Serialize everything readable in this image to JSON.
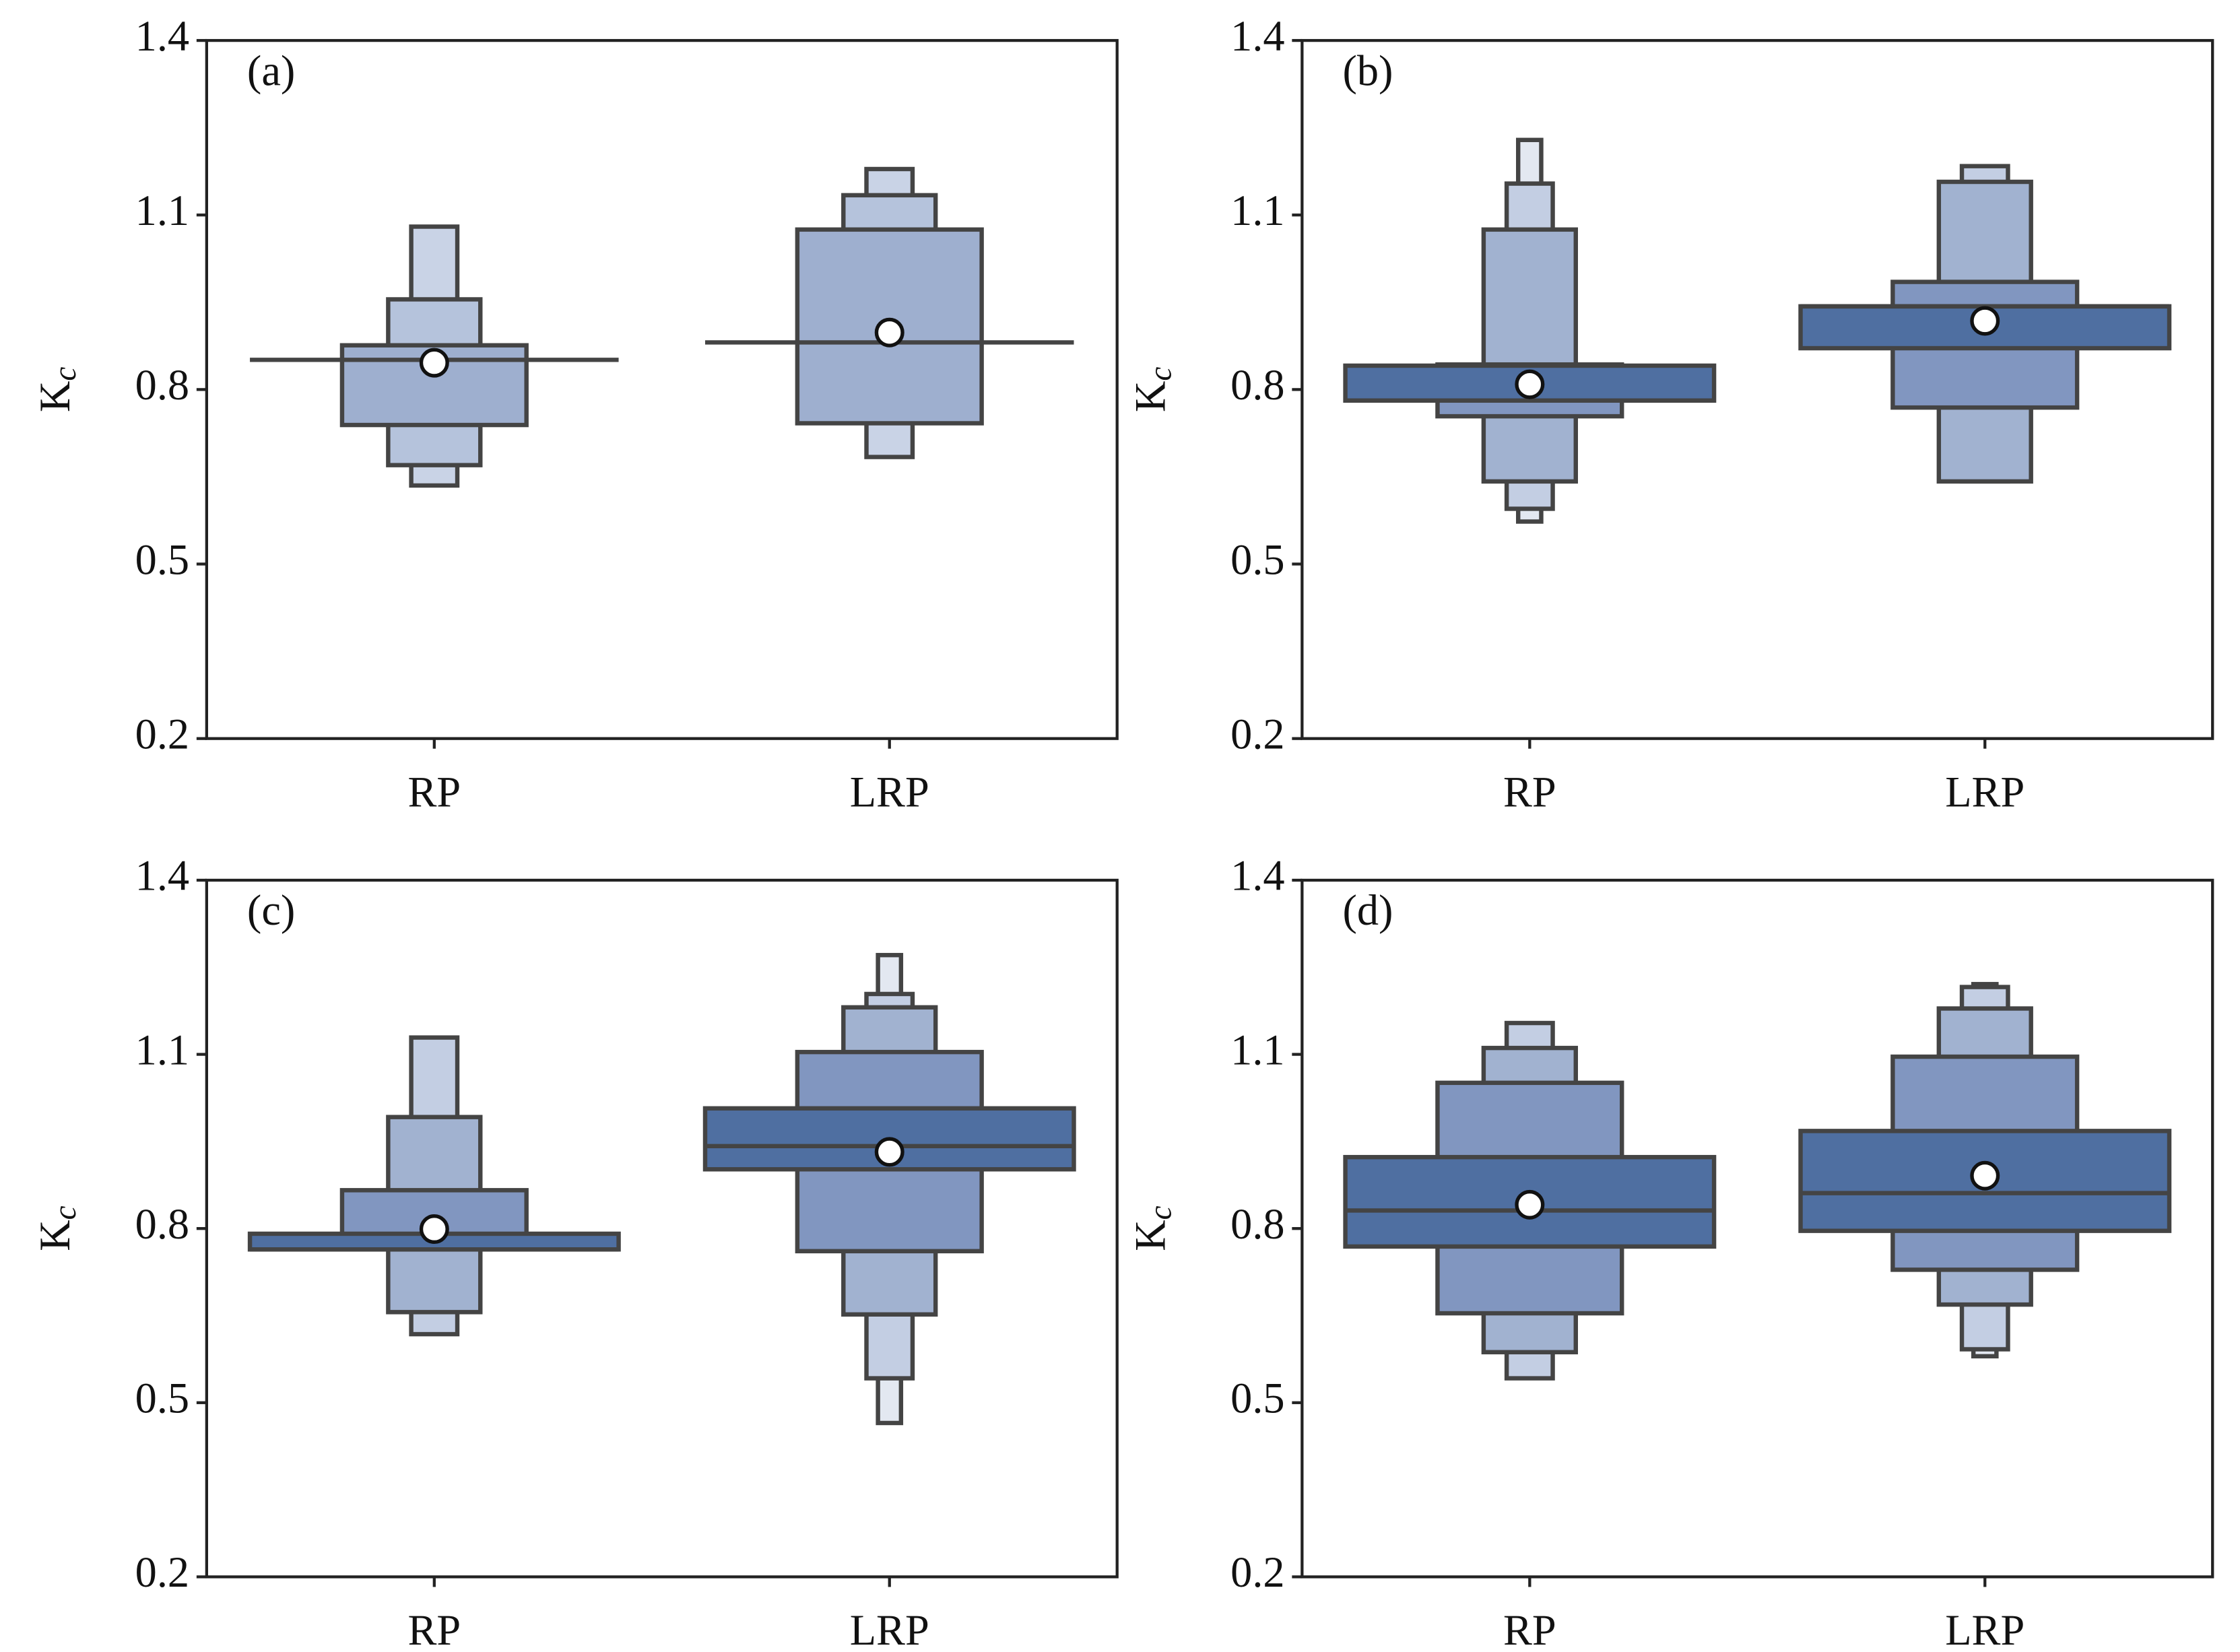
{
  "chart_data": [
    {
      "type": "boxen",
      "label": "(a)",
      "ylabel": "K",
      "ylabel_sub": "c",
      "categories": [
        "RP",
        "LRP"
      ],
      "ylim": [
        0.2,
        1.4
      ],
      "yticks": [
        0.2,
        0.5,
        0.8,
        1.1,
        1.4
      ],
      "level_colors": [
        "#4f6fa1",
        "#9eafcf",
        "#b5c3dc",
        "#c9d3e6",
        "#e3e8f1"
      ],
      "boxes": [
        {
          "levels": [
            [
              0.851,
              0.851
            ],
            [
              0.739,
              0.876
            ],
            [
              0.67,
              0.955
            ],
            [
              0.635,
              1.08
            ]
          ],
          "median": 0.851,
          "mean": 0.846
        },
        {
          "levels": [
            [
              0.881,
              0.881
            ],
            [
              0.742,
              1.075
            ],
            [
              0.762,
              1.134
            ],
            [
              0.684,
              1.179
            ]
          ],
          "median": 0.881,
          "mean": 0.898
        }
      ]
    },
    {
      "type": "boxen",
      "label": "(b)",
      "ylabel": "K",
      "ylabel_sub": "c",
      "categories": [
        "RP",
        "LRP"
      ],
      "ylim": [
        0.2,
        1.4
      ],
      "yticks": [
        0.2,
        0.5,
        0.8,
        1.1,
        1.4
      ],
      "level_colors": [
        "#4f6fa1",
        "#8196c0",
        "#a1b2d0",
        "#c3cee3",
        "#e3e8f1"
      ],
      "boxes": [
        {
          "levels": [
            [
              0.781,
              0.841
            ],
            [
              0.754,
              0.843
            ],
            [
              0.642,
              1.075
            ],
            [
              0.595,
              1.154
            ],
            [
              0.573,
              1.229
            ]
          ],
          "median": 0.781,
          "mean": 0.809
        },
        {
          "levels": [
            [
              0.871,
              0.943
            ],
            [
              0.769,
              0.985
            ],
            [
              0.642,
              1.157
            ],
            [
              0.642,
              1.184
            ]
          ],
          "median": 0.943,
          "mean": 0.918
        }
      ]
    },
    {
      "type": "boxen",
      "label": "(c)",
      "ylabel": "K",
      "ylabel_sub": "c",
      "categories": [
        "RP",
        "LRP"
      ],
      "ylim": [
        0.2,
        1.4
      ],
      "yticks": [
        0.2,
        0.5,
        0.8,
        1.1,
        1.4
      ],
      "level_colors": [
        "#4f6fa1",
        "#8196c0",
        "#a1b2d0",
        "#c3cee3",
        "#e3e8f1"
      ],
      "boxes": [
        {
          "levels": [
            [
              0.764,
              0.791
            ],
            [
              0.764,
              0.866
            ],
            [
              0.656,
              0.992
            ],
            [
              0.618,
              1.129
            ]
          ],
          "median": 0.764,
          "mean": 0.799
        },
        {
          "levels": [
            [
              0.902,
              1.007
            ],
            [
              0.761,
              1.104
            ],
            [
              0.652,
              1.181
            ],
            [
              0.542,
              1.204
            ],
            [
              0.465,
              1.271
            ]
          ],
          "median": 0.942,
          "mean": 0.932
        }
      ]
    },
    {
      "type": "boxen",
      "label": "(d)",
      "ylabel": "K",
      "ylabel_sub": "c",
      "categories": [
        "RP",
        "LRP"
      ],
      "ylim": [
        0.2,
        1.4
      ],
      "yticks": [
        0.2,
        0.5,
        0.8,
        1.1,
        1.4
      ],
      "level_colors": [
        "#4f6fa1",
        "#8196c0",
        "#a1b2d0",
        "#c3cee3",
        "#e3e8f1"
      ],
      "boxes": [
        {
          "levels": [
            [
              0.769,
              0.923
            ],
            [
              0.654,
              1.051
            ],
            [
              0.587,
              1.111
            ],
            [
              0.542,
              1.154
            ]
          ],
          "median": 0.831,
          "mean": 0.841
        },
        {
          "levels": [
            [
              0.796,
              0.968
            ],
            [
              0.729,
              1.096
            ],
            [
              0.669,
              1.179
            ],
            [
              0.592,
              1.216
            ],
            [
              0.58,
              1.221
            ]
          ],
          "median": 0.861,
          "mean": 0.891
        }
      ]
    }
  ]
}
